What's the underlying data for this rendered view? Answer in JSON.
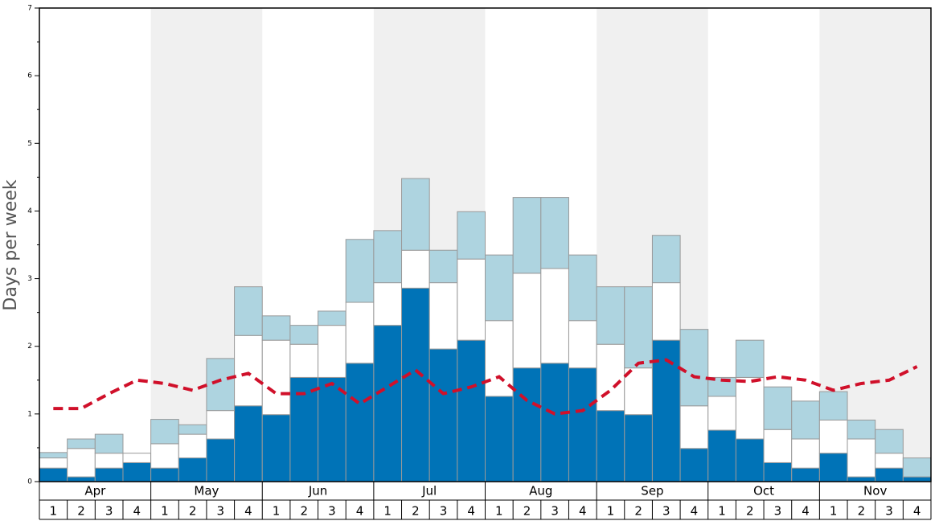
{
  "chart_data": {
    "type": "bar",
    "stacked": true,
    "ylabel": "Days per week",
    "months": [
      "Apr",
      "May",
      "Jun",
      "Jul",
      "Aug",
      "Sep",
      "Oct",
      "Nov"
    ],
    "categories": [
      "1",
      "2",
      "3",
      "4",
      "1",
      "2",
      "3",
      "4",
      "1",
      "2",
      "3",
      "4",
      "1",
      "2",
      "3",
      "4",
      "1",
      "2",
      "3",
      "4",
      "1",
      "2",
      "3",
      "4",
      "1",
      "2",
      "3",
      "4",
      "1",
      "2",
      "3",
      "4"
    ],
    "ylim": [
      0,
      7
    ],
    "yticks": [
      0,
      1,
      2,
      3,
      4,
      5,
      6,
      7
    ],
    "series": [
      {
        "color": "#0073b7",
        "values": [
          0.2,
          0.07,
          0.2,
          0.28,
          0.2,
          0.35,
          0.63,
          1.12,
          0.99,
          1.54,
          1.54,
          1.75,
          2.31,
          2.86,
          1.96,
          2.09,
          1.26,
          1.68,
          1.75,
          1.68,
          1.05,
          0.99,
          2.09,
          0.49,
          0.76,
          0.63,
          0.28,
          0.2,
          0.42,
          0.07,
          0.2,
          0.07
        ]
      },
      {
        "color": "#ffffff",
        "values": [
          0.15,
          0.42,
          0.22,
          0.14,
          0.36,
          0.35,
          0.42,
          1.04,
          1.1,
          0.49,
          0.77,
          0.9,
          0.63,
          0.56,
          0.98,
          1.2,
          1.12,
          1.4,
          1.4,
          0.7,
          0.98,
          0.69,
          0.85,
          0.63,
          0.5,
          0.91,
          0.49,
          0.43,
          0.49,
          0.56,
          0.22,
          0
        ]
      },
      {
        "color": "#aed4e0",
        "values": [
          0.08,
          0.14,
          0.28,
          0,
          0.36,
          0.14,
          0.77,
          0.72,
          0.36,
          0.28,
          0.21,
          0.93,
          0.77,
          1.06,
          0.48,
          0.7,
          0.97,
          1.12,
          1.05,
          0.97,
          0.85,
          1.2,
          0.7,
          1.13,
          0.28,
          0.55,
          0.63,
          0.56,
          0.42,
          0.28,
          0.35,
          0.28
        ]
      }
    ],
    "line": {
      "color": "#d0102a",
      "dashed": true,
      "values": [
        1.08,
        1.08,
        1.3,
        1.5,
        1.45,
        1.35,
        1.5,
        1.6,
        1.3,
        1.3,
        1.45,
        1.15,
        1.4,
        1.65,
        1.3,
        1.4,
        1.55,
        1.2,
        1.0,
        1.05,
        1.35,
        1.75,
        1.8,
        1.55,
        1.5,
        1.48,
        1.55,
        1.5,
        1.35,
        1.45,
        1.5,
        1.7
      ]
    },
    "band_color": "#f0f0f0"
  }
}
